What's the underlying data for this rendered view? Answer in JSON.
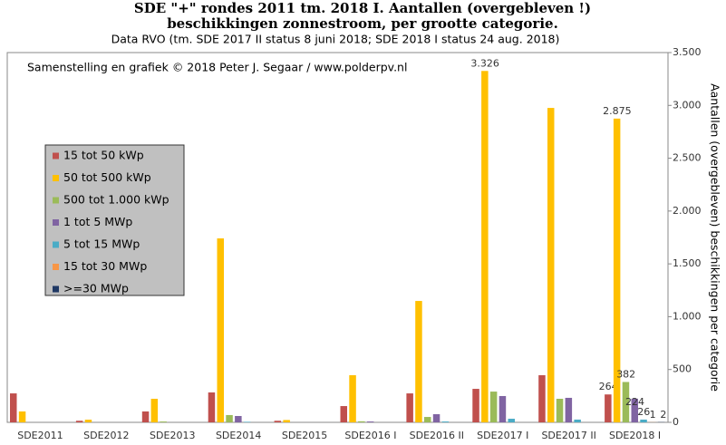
{
  "chart_data": {
    "type": "bar",
    "title": "SDE \"+\" rondes 2011 tm. 2018 I. Aantallen (overgebleven !)",
    "subtitle": "beschikkingen  zonnestroom, per grootte categorie.",
    "note": "Data RVO  (tm. SDE 2017 II status 8 juni 2018; SDE 2018 I status 24 aug. 2018)",
    "annotation": "Samenstelling en grafiek © 2018  Peter J. Segaar / www.polderpv.nl",
    "y_label": "Aantallen (overgebleven) beschikkingen  per categorie",
    "categories": [
      "SDE2011",
      "SDE2012",
      "SDE2013",
      "SDE2014",
      "SDE2015",
      "SDE2016 I",
      "SDE2016 II",
      "SDE2017 I",
      "SDE2017 II",
      "SDE2018 I"
    ],
    "series": [
      {
        "name": "15  tot 50  kWp",
        "color": "#c0504d",
        "values": [
          274,
          15,
          103,
          283,
          15,
          154,
          274,
          317,
          446,
          264
        ],
        "value_labels": [
          null,
          null,
          null,
          null,
          null,
          null,
          null,
          null,
          null,
          "264"
        ]
      },
      {
        "name": "50  tot 500 kWp",
        "color": "#ffc000",
        "values": [
          103,
          25,
          223,
          1741,
          22,
          446,
          1149,
          3326,
          2976,
          2875
        ],
        "value_labels": [
          null,
          null,
          null,
          null,
          null,
          null,
          null,
          "3.326",
          null,
          "2.875"
        ]
      },
      {
        "name": "500  tot 1.000 kWp",
        "color": "#9bbb59",
        "values": [
          0,
          0,
          8,
          69,
          0,
          10,
          51,
          291,
          223,
          382
        ],
        "value_labels": [
          null,
          null,
          null,
          null,
          null,
          null,
          null,
          null,
          null,
          "382"
        ]
      },
      {
        "name": "1  tot 5  MWp",
        "color": "#8064a2",
        "values": [
          0,
          0,
          0,
          60,
          0,
          8,
          77,
          249,
          232,
          224
        ],
        "value_labels": [
          null,
          null,
          null,
          null,
          null,
          null,
          null,
          null,
          null,
          "224"
        ]
      },
      {
        "name": "5  tot 15  MWp",
        "color": "#4bacc6",
        "values": [
          0,
          0,
          0,
          5,
          0,
          0,
          8,
          34,
          26,
          26
        ],
        "value_labels": [
          null,
          null,
          null,
          null,
          null,
          null,
          null,
          null,
          null,
          "26"
        ]
      },
      {
        "name": "15  tot 30  MWp",
        "color": "#f79646",
        "values": [
          0,
          0,
          0,
          0,
          0,
          0,
          0,
          0,
          0,
          1
        ],
        "value_labels": [
          null,
          null,
          null,
          null,
          null,
          null,
          null,
          null,
          null,
          "1"
        ]
      },
      {
        "name": ">=30  MWp",
        "color": "#1f3864",
        "values": [
          0,
          0,
          0,
          0,
          0,
          0,
          0,
          0,
          0,
          2
        ],
        "value_labels": [
          null,
          null,
          null,
          null,
          null,
          null,
          null,
          null,
          null,
          "2"
        ]
      }
    ],
    "ylim": [
      0,
      3500
    ],
    "yticks": [
      0,
      500,
      {
        "value": 1000,
        "label": "1.000"
      },
      {
        "value": 1500,
        "label": "1.500"
      },
      {
        "value": 2000,
        "label": "2.000"
      },
      {
        "value": 2500,
        "label": "2.500"
      },
      {
        "value": 3000,
        "label": "3.000"
      },
      {
        "value": 3500,
        "label": "3.500"
      }
    ],
    "highlight_label_color": "#e03030"
  }
}
